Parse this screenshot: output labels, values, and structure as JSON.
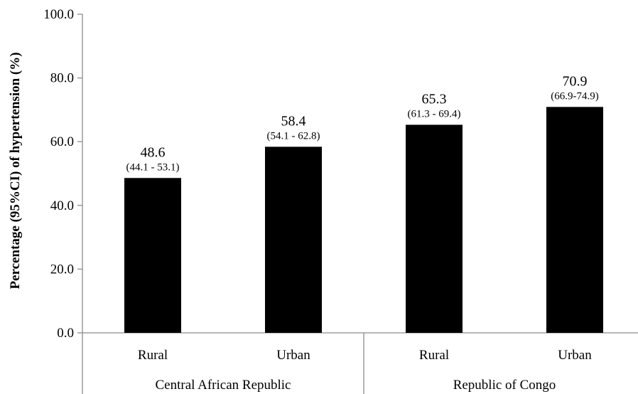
{
  "chart_data": {
    "type": "bar",
    "title": "",
    "ylabel": "Percentage (95%CI) of hypertension (%)",
    "xlabel": "",
    "ylim": [
      0,
      100
    ],
    "yticks": [
      "0.0",
      "20.0",
      "40.0",
      "60.0",
      "80.0",
      "100.0"
    ],
    "grid": false,
    "legend": "none",
    "bar_color": "#000000",
    "groups": [
      {
        "label": "Central African Republic",
        "categories": [
          "Rural",
          "Urban"
        ]
      },
      {
        "label": "Republic of Congo",
        "categories": [
          "Rural",
          "Urban"
        ]
      }
    ],
    "bars": [
      {
        "group": "Central African Republic",
        "category": "Rural",
        "value": 48.6,
        "value_label": "48.6",
        "ci_label": "(44.1 - 53.1)"
      },
      {
        "group": "Central African Republic",
        "category": "Urban",
        "value": 58.4,
        "value_label": "58.4",
        "ci_label": "(54.1 - 62.8)"
      },
      {
        "group": "Republic of Congo",
        "category": "Rural",
        "value": 65.3,
        "value_label": "65.3",
        "ci_label": "(61.3 - 69.4)"
      },
      {
        "group": "Republic of Congo",
        "category": "Urban",
        "value": 70.9,
        "value_label": "70.9",
        "ci_label": "(66.9-74.9)"
      }
    ]
  }
}
